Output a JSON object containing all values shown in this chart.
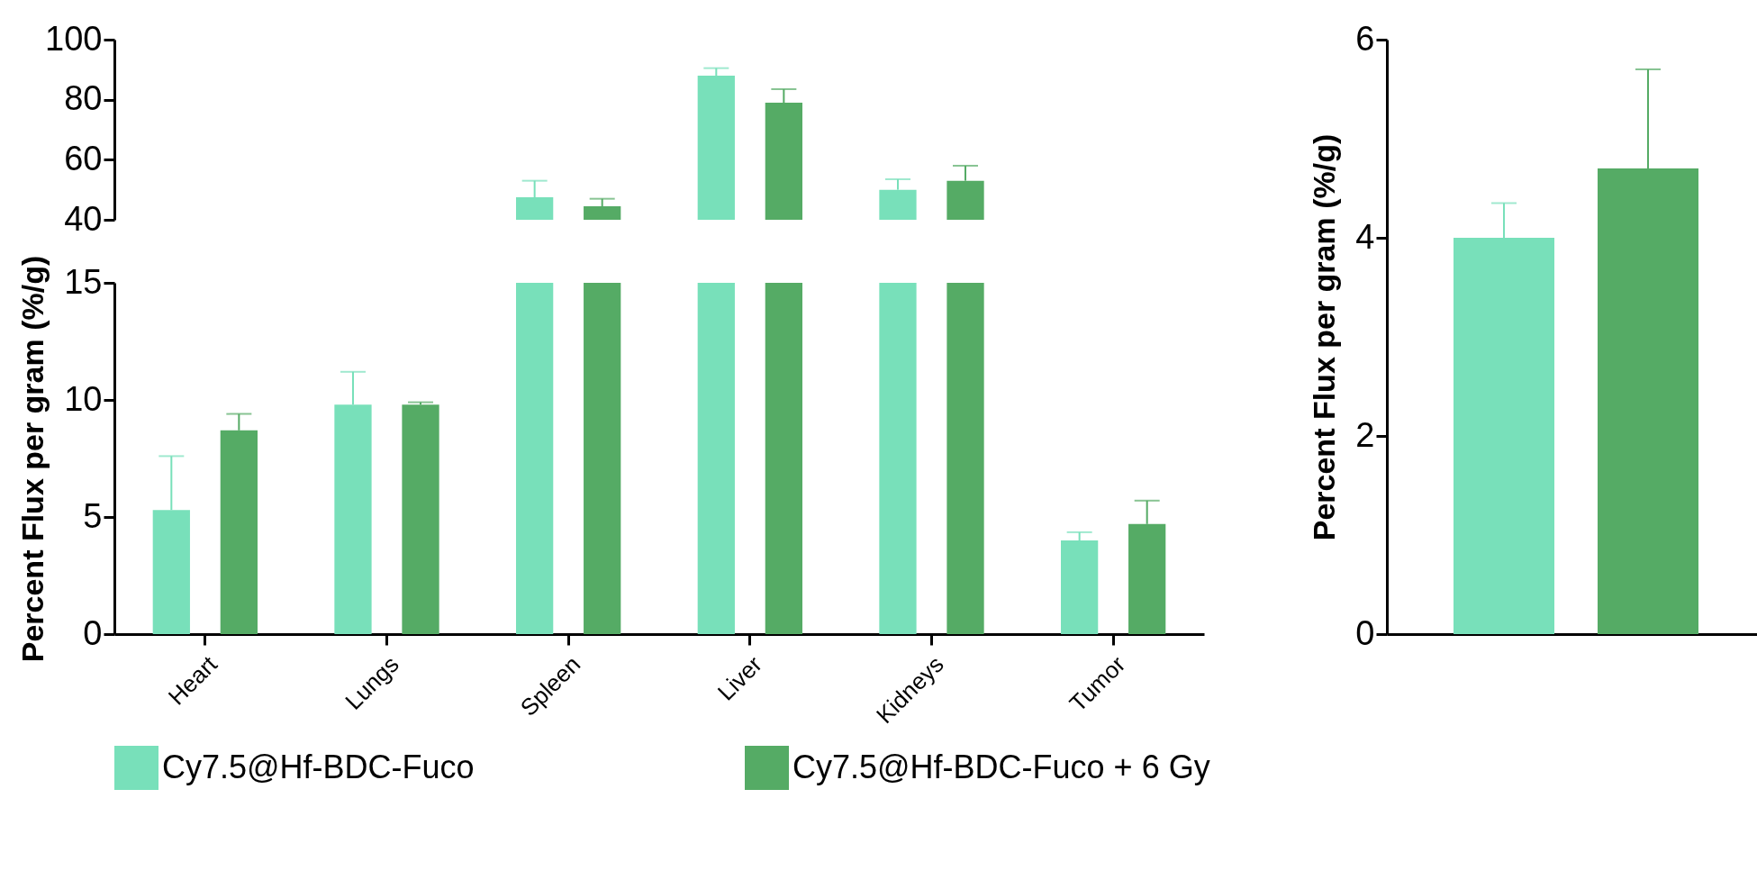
{
  "chart_data": [
    {
      "type": "bar",
      "categories": [
        null,
        null,
        null,
        null,
        null,
        null
      ],
      "ylim": [
        40,
        100
      ],
      "yticks": [
        40,
        60,
        80,
        100
      ],
      "tick_labels": "y",
      "series": [
        {
          "color": "#78e0ba",
          "values": [
            null,
            null,
            47.5,
            88,
            50,
            null
          ],
          "errors": [
            null,
            null,
            [
              47.5,
              53
            ],
            [
              88,
              90.5
            ],
            [
              50,
              53.5
            ],
            null
          ]
        },
        {
          "color": "#55ab65",
          "values": [
            null,
            null,
            44.5,
            79,
            53,
            null
          ],
          "errors": [
            null,
            null,
            [
              44.5,
              47
            ],
            [
              79,
              83.5
            ],
            [
              53,
              58
            ],
            null
          ]
        }
      ]
    },
    {
      "type": "bar",
      "categories": [
        "Heart",
        "Lungs",
        "Spleen",
        "Liver",
        "Kidneys",
        "Tumor"
      ],
      "ylim": [
        0,
        15
      ],
      "yticks": [
        0,
        5,
        10,
        15
      ],
      "ylabel": "Percent Flux per gram (%/g)",
      "legend": "bottom",
      "series": [
        {
          "name": "Cy7.5@Hf-BDC-Fuco",
          "color": "#78e0ba",
          "values": [
            5.3,
            9.8,
            15,
            15,
            15,
            4.0
          ],
          "errors": [
            [
              5.3,
              7.6
            ],
            [
              9.8,
              11.2
            ],
            null,
            null,
            null,
            [
              4.0,
              4.35
            ]
          ]
        },
        {
          "name": "Cy7.5@Hf-BDC-Fuco + 6 Gy",
          "color": "#55ab65",
          "values": [
            8.7,
            9.8,
            15,
            15,
            15,
            4.7
          ],
          "errors": [
            [
              8.7,
              9.4
            ],
            [
              9.8,
              9.9
            ],
            null,
            null,
            null,
            [
              4.7,
              5.7
            ]
          ]
        }
      ]
    },
    {
      "type": "bar",
      "categories": [
        null
      ],
      "ylim": [
        0,
        6
      ],
      "yticks": [
        0,
        2,
        4,
        6
      ],
      "tick_labels": "y",
      "ylabel": "Percent Flux per gram (%/g)",
      "series": [
        {
          "color": "#78e0ba",
          "values": [
            4.0
          ],
          "errors": [
            [
              4.0,
              4.35
            ]
          ]
        },
        {
          "color": "#55ab65",
          "values": [
            4.7
          ],
          "errors": [
            [
              4.7,
              5.7
            ]
          ]
        }
      ]
    }
  ]
}
